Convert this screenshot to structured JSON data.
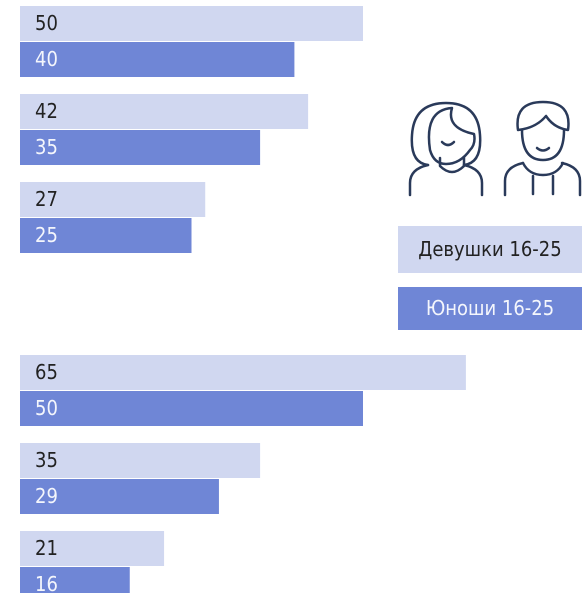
{
  "chart_data": {
    "type": "bar",
    "categories": [
      null,
      null,
      null,
      null,
      null,
      null
    ],
    "series": [
      {
        "name": "Девушки 16-25",
        "color": "#d0d7f0",
        "values": [
          50,
          42,
          27,
          65,
          35,
          21
        ]
      },
      {
        "name": "Юноши 16-25",
        "color": "#6f86d6",
        "values": [
          40,
          35,
          25,
          50,
          29,
          16
        ]
      }
    ]
  }
}
